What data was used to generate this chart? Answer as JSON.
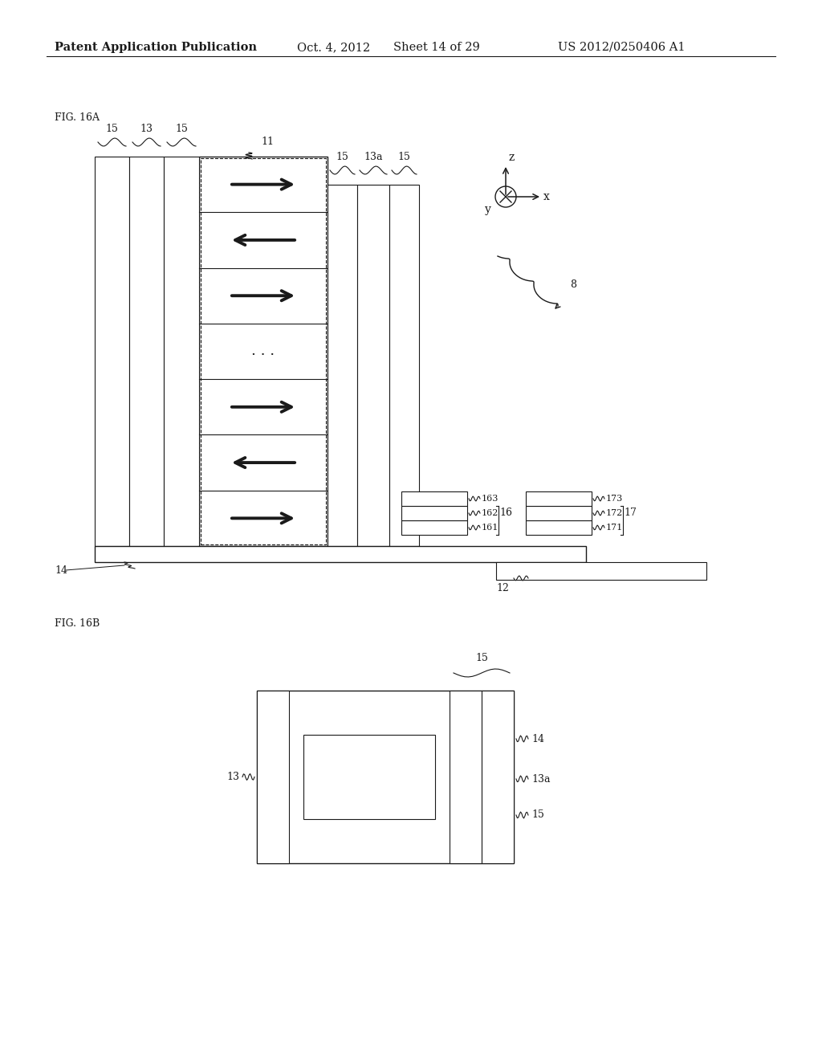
{
  "bg_color": "#ffffff",
  "header_text": "Patent Application Publication",
  "header_date": "Oct. 4, 2012",
  "header_sheet": "Sheet 14 of 29",
  "header_patent": "US 2012/0250406 A1",
  "fig_label_a": "FIG. 16A",
  "fig_label_b": "FIG. 16B"
}
